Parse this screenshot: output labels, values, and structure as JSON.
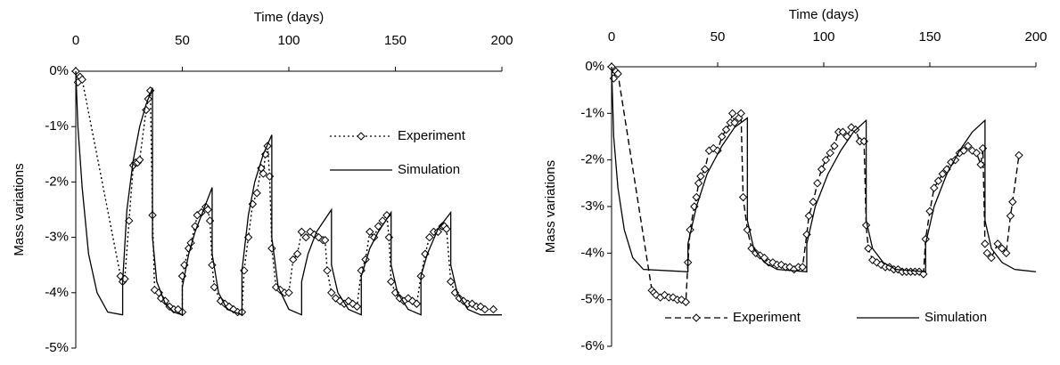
{
  "chart_data": [
    {
      "type": "line",
      "x_label": "Time (days)",
      "y_label": "Mass variations",
      "x_axis_position": "top",
      "legend": "right",
      "xlim": [
        0,
        200
      ],
      "xticks": [
        0,
        50,
        100,
        150,
        200
      ],
      "ylim": [
        -5,
        0
      ],
      "yticks": [
        {
          "value": 0,
          "label": "0%"
        },
        {
          "value": -1,
          "label": "-1%"
        },
        {
          "value": -2,
          "label": "-2%"
        },
        {
          "value": -3,
          "label": "-3%"
        },
        {
          "value": -4,
          "label": "-4%"
        },
        {
          "value": -5,
          "label": "-5%"
        }
      ],
      "series": [
        {
          "name": "Experiment",
          "color": "#000000",
          "dash": "dotted",
          "marker": "diamond",
          "x": [
            0,
            1,
            2,
            3,
            21,
            22,
            23,
            25,
            27,
            28,
            29,
            30,
            33,
            34,
            35,
            36,
            37,
            39,
            40,
            42,
            44,
            46,
            48,
            50,
            50,
            51,
            53,
            54,
            56,
            57,
            59,
            61,
            62,
            63,
            64,
            65,
            68,
            70,
            72,
            74,
            76,
            78,
            79,
            81,
            83,
            85,
            87,
            88,
            89,
            90,
            91,
            92,
            94,
            96,
            98,
            100,
            102,
            104,
            106,
            108,
            110,
            112,
            114,
            116,
            117,
            118,
            120,
            122,
            124,
            126,
            128,
            130,
            132,
            134,
            136,
            138,
            140,
            142,
            144,
            146,
            147,
            148,
            150,
            152,
            154,
            156,
            158,
            160,
            162,
            164,
            166,
            168,
            170,
            172,
            173,
            174,
            176,
            178,
            180,
            182,
            184,
            186,
            188,
            190,
            192,
            196
          ],
          "values": [
            0,
            -0.2,
            -0.1,
            -0.15,
            -3.7,
            -3.8,
            -3.75,
            -2.7,
            -1.7,
            -1.65,
            -1.65,
            -1.6,
            -0.7,
            -0.5,
            -0.35,
            -2.6,
            -3.95,
            -4.0,
            -4.1,
            -4.15,
            -4.25,
            -4.3,
            -4.3,
            -4.35,
            -3.7,
            -3.5,
            -3.2,
            -3.1,
            -2.8,
            -2.6,
            -2.55,
            -2.45,
            -2.5,
            -2.7,
            -3.5,
            -3.9,
            -4.15,
            -4.2,
            -4.25,
            -4.3,
            -4.35,
            -4.35,
            -3.6,
            -3.0,
            -2.4,
            -2.2,
            -1.75,
            -1.85,
            -1.5,
            -1.35,
            -1.9,
            -3.2,
            -3.9,
            -3.95,
            -4.0,
            -4.0,
            -3.4,
            -3.3,
            -2.9,
            -3.0,
            -2.9,
            -2.95,
            -3.0,
            -3.05,
            -3.05,
            -3.6,
            -4.0,
            -4.1,
            -4.15,
            -4.2,
            -4.15,
            -4.2,
            -4.25,
            -3.6,
            -3.4,
            -2.9,
            -3.0,
            -2.8,
            -2.7,
            -2.6,
            -3.0,
            -3.8,
            -4.0,
            -4.1,
            -4.15,
            -4.1,
            -4.15,
            -4.2,
            -3.7,
            -3.3,
            -3.0,
            -2.9,
            -2.9,
            -2.8,
            -2.8,
            -2.85,
            -3.8,
            -4.0,
            -4.1,
            -4.15,
            -4.2,
            -4.2,
            -4.25,
            -4.25,
            -4.3,
            -4.3
          ]
        },
        {
          "name": "Simulation",
          "color": "#000000",
          "dash": "solid",
          "x": [
            0,
            1,
            3,
            6,
            10,
            15,
            22,
            22,
            24,
            27,
            30,
            33,
            36,
            36,
            38,
            42,
            46,
            50,
            50,
            53,
            56,
            60,
            64,
            64,
            67,
            71,
            78,
            78,
            81,
            84,
            88,
            92,
            92,
            95,
            100,
            106,
            106,
            109,
            113,
            120,
            120,
            123,
            128,
            134,
            134,
            138,
            142,
            148,
            148,
            151,
            156,
            162,
            162,
            165,
            170,
            176,
            176,
            179,
            184,
            190,
            200
          ],
          "values": [
            0,
            -1,
            -2.1,
            -3.3,
            -4.0,
            -4.35,
            -4.4,
            -3.8,
            -2.5,
            -1.6,
            -1.0,
            -0.6,
            -0.3,
            -3.0,
            -3.8,
            -4.2,
            -4.35,
            -4.4,
            -3.9,
            -3.3,
            -2.9,
            -2.5,
            -2.1,
            -3.3,
            -4.0,
            -4.3,
            -4.4,
            -3.6,
            -2.6,
            -2.0,
            -1.5,
            -1.15,
            -3.0,
            -3.9,
            -4.3,
            -4.4,
            -3.8,
            -3.3,
            -2.9,
            -2.5,
            -3.5,
            -4.0,
            -4.3,
            -4.4,
            -3.7,
            -3.2,
            -2.9,
            -2.55,
            -3.5,
            -4.0,
            -4.3,
            -4.4,
            -3.7,
            -3.3,
            -2.85,
            -2.55,
            -3.5,
            -4.0,
            -4.3,
            -4.4,
            -4.4
          ]
        }
      ]
    },
    {
      "type": "line",
      "x_label": "Time (days)",
      "y_label": "Mass variations",
      "x_axis_position": "top",
      "legend": "bottom",
      "xlim": [
        0,
        200
      ],
      "xticks": [
        0,
        50,
        100,
        150,
        200
      ],
      "ylim": [
        -6,
        0
      ],
      "yticks": [
        {
          "value": 0,
          "label": "0%"
        },
        {
          "value": -1,
          "label": "-1%"
        },
        {
          "value": -2,
          "label": "-2%"
        },
        {
          "value": -3,
          "label": "-3%"
        },
        {
          "value": -4,
          "label": "-4%"
        },
        {
          "value": -5,
          "label": "-5%"
        },
        {
          "value": -6,
          "label": "-6%"
        }
      ],
      "series": [
        {
          "name": "Experiment",
          "color": "#000000",
          "dash": "dashed",
          "marker": "diamond",
          "x": [
            0,
            1,
            2,
            3,
            19,
            20,
            21,
            23,
            25,
            27,
            29,
            31,
            33,
            35,
            36,
            37,
            39,
            40,
            41,
            42,
            44,
            46,
            48,
            50,
            52,
            54,
            56,
            57,
            58,
            60,
            61,
            62,
            64,
            66,
            68,
            70,
            72,
            74,
            76,
            78,
            80,
            82,
            84,
            86,
            88,
            90,
            92,
            93,
            95,
            97,
            99,
            101,
            103,
            105,
            107,
            109,
            111,
            113,
            115,
            117,
            119,
            120,
            121,
            123,
            125,
            127,
            129,
            131,
            133,
            135,
            137,
            139,
            141,
            143,
            145,
            147,
            148,
            150,
            152,
            154,
            156,
            158,
            160,
            162,
            164,
            166,
            168,
            170,
            172,
            174,
            175,
            176,
            177,
            179,
            182,
            184,
            186,
            188,
            189,
            192
          ],
          "values": [
            0,
            -0.25,
            -0.1,
            -0.15,
            -4.8,
            -4.85,
            -4.9,
            -4.95,
            -4.9,
            -4.95,
            -4.95,
            -5.0,
            -5.0,
            -5.05,
            -4.2,
            -3.5,
            -3.0,
            -2.8,
            -2.5,
            -2.35,
            -2.2,
            -1.8,
            -1.75,
            -1.8,
            -1.5,
            -1.35,
            -1.2,
            -1.0,
            -1.2,
            -1.1,
            -1.0,
            -2.8,
            -3.5,
            -3.9,
            -4.0,
            -4.05,
            -4.1,
            -4.2,
            -4.2,
            -4.25,
            -4.25,
            -4.3,
            -4.3,
            -4.35,
            -4.3,
            -4.3,
            -3.6,
            -3.2,
            -2.9,
            -2.5,
            -2.2,
            -2.0,
            -1.85,
            -1.7,
            -1.4,
            -1.4,
            -1.5,
            -1.3,
            -1.35,
            -1.6,
            -1.6,
            -3.4,
            -3.9,
            -4.15,
            -4.2,
            -4.25,
            -4.3,
            -4.3,
            -4.35,
            -4.35,
            -4.4,
            -4.4,
            -4.4,
            -4.4,
            -4.4,
            -4.45,
            -3.7,
            -3.1,
            -2.6,
            -2.45,
            -2.3,
            -2.2,
            -2.05,
            -2.0,
            -1.85,
            -1.8,
            -1.7,
            -1.8,
            -1.85,
            -2.1,
            -1.75,
            -3.8,
            -4.0,
            -4.1,
            -3.8,
            -3.9,
            -4.0,
            -3.2,
            -2.9,
            -1.9
          ]
        },
        {
          "name": "Simulation",
          "color": "#000000",
          "dash": "solid",
          "x": [
            0,
            1,
            3,
            6,
            10,
            15,
            36,
            36,
            40,
            45,
            52,
            58,
            64,
            64,
            67,
            72,
            78,
            92,
            92,
            96,
            102,
            108,
            114,
            120,
            120,
            123,
            128,
            134,
            148,
            148,
            152,
            158,
            164,
            170,
            176,
            176,
            179,
            184,
            190,
            200
          ],
          "values": [
            0,
            -1.5,
            -2.6,
            -3.5,
            -4.1,
            -4.35,
            -4.4,
            -3.8,
            -3.0,
            -2.3,
            -1.7,
            -1.3,
            -1.1,
            -3.3,
            -3.9,
            -4.2,
            -4.35,
            -4.4,
            -3.8,
            -3.0,
            -2.3,
            -1.8,
            -1.4,
            -1.15,
            -3.3,
            -3.9,
            -4.2,
            -4.35,
            -4.4,
            -3.8,
            -3.0,
            -2.3,
            -1.8,
            -1.4,
            -1.15,
            -3.3,
            -3.9,
            -4.2,
            -4.35,
            -4.4
          ]
        }
      ]
    }
  ]
}
